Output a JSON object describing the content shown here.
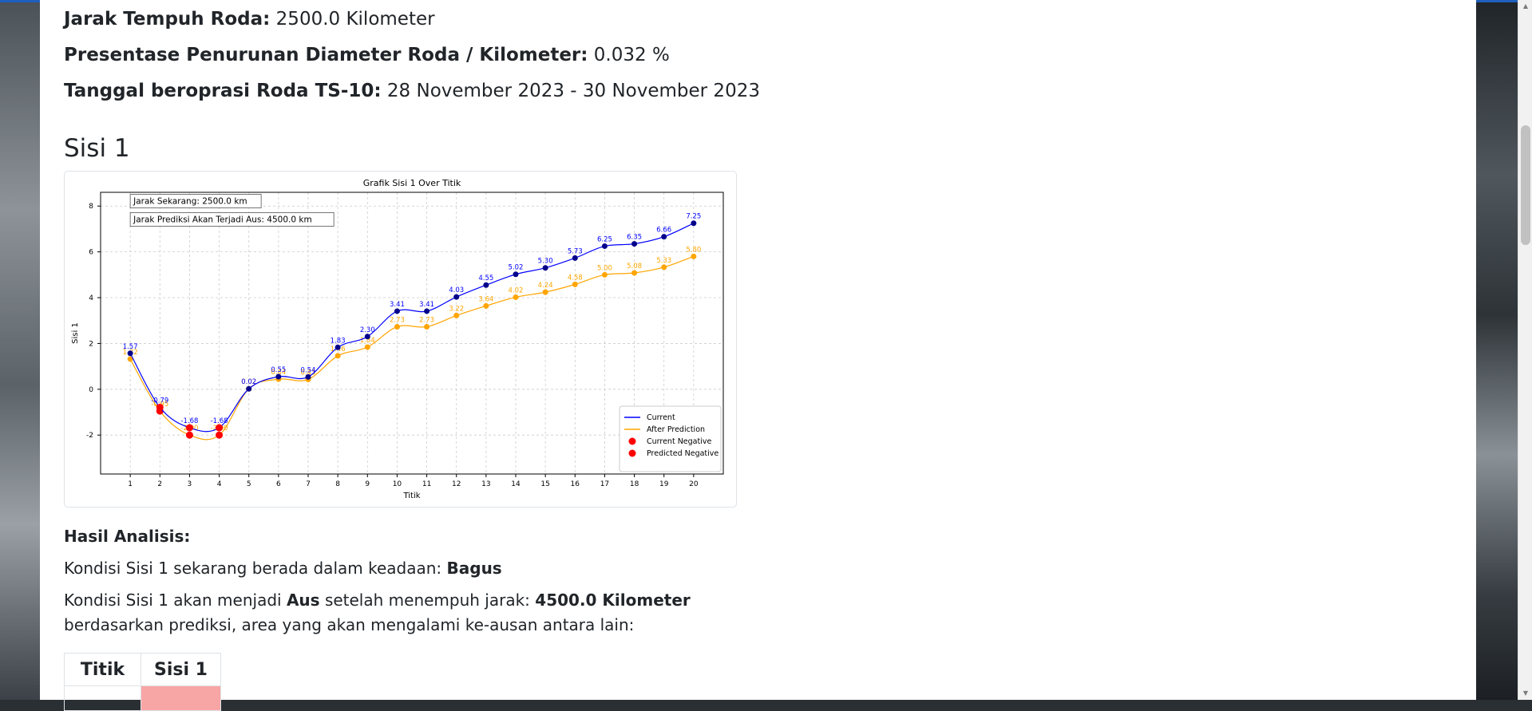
{
  "info": {
    "distance_label": "Jarak Tempuh Roda:",
    "distance_value": "2500.0 Kilometer",
    "reduction_label": "Presentase Penurunan Diameter Roda / Kilometer:",
    "reduction_value": "0.032 %",
    "date_label": "Tanggal beroprasi Roda TS-10:",
    "date_value": "28 November 2023 - 30 November 2023"
  },
  "section_title": "Sisi 1",
  "chart_data": {
    "type": "line",
    "title": "Grafik Sisi 1 Over Titik",
    "xlabel": "Titik",
    "ylabel": "Sisi 1",
    "x": [
      1,
      2,
      3,
      4,
      5,
      6,
      7,
      8,
      9,
      10,
      11,
      12,
      13,
      14,
      15,
      16,
      17,
      18,
      19,
      20
    ],
    "xlim": [
      0,
      21
    ],
    "ylim": [
      -3.7,
      8.6
    ],
    "yticks": [
      -2,
      0,
      2,
      4,
      6,
      8
    ],
    "grid": true,
    "series": [
      {
        "name": "Current",
        "color": "#0000ff",
        "values": [
          1.57,
          -0.79,
          -1.68,
          -1.68,
          0.02,
          0.55,
          0.54,
          1.83,
          2.3,
          3.41,
          3.41,
          4.03,
          4.55,
          5.02,
          5.3,
          5.73,
          6.25,
          6.35,
          6.66,
          7.25
        ]
      },
      {
        "name": "After Prediction",
        "color": "#ffa500",
        "values": [
          1.32,
          -0.95,
          -2.0,
          -2.0,
          0.02,
          0.44,
          0.43,
          1.46,
          1.84,
          2.73,
          2.73,
          3.22,
          3.64,
          4.02,
          4.24,
          4.58,
          5.0,
          5.08,
          5.33,
          5.8
        ]
      }
    ],
    "negative_markers": [
      {
        "name": "Current Negative",
        "color": "#ff0000"
      },
      {
        "name": "Predicted Negative",
        "color": "#ff0000"
      }
    ],
    "annotations": [
      "Jarak Sekarang: 2500.0 km",
      "Jarak Prediksi Akan Terjadi Aus: 4500.0 km"
    ],
    "legend_position": "lower right"
  },
  "analysis": {
    "heading": "Hasil Analisis:",
    "condition_prefix": "Kondisi Sisi 1 sekarang berada dalam keadaan:",
    "condition_value": "Bagus",
    "will_prefix": "Kondisi Sisi 1 akan menjadi",
    "will_state": "Aus",
    "will_middle": "setelah menempuh jarak:",
    "will_distance": "4500.0 Kilometer",
    "area_text": "berdasarkan prediksi, area yang akan mengalami ke-ausan antara lain:"
  },
  "wear_table": {
    "headers": [
      "Titik",
      "Sisi 1"
    ],
    "highlight_color": "#f8a5a5"
  }
}
